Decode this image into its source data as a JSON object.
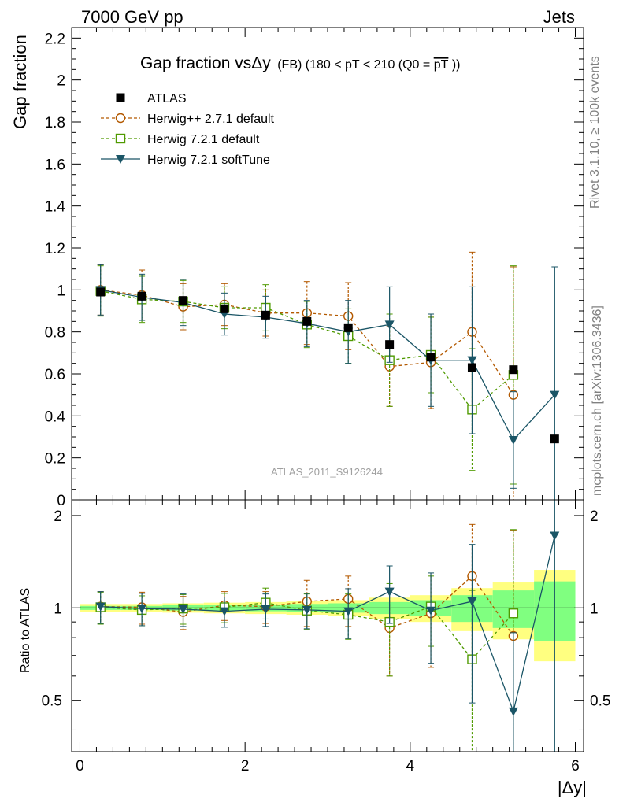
{
  "header": {
    "left": "7000 GeV pp",
    "right": "Jets"
  },
  "side_labels": {
    "rivet": "Rivet 3.1.10, ≥ 100k events",
    "mcplots": "mcplots.cern.ch [arXiv:1306.3436]"
  },
  "watermark": "ATLAS_2011_S9126244",
  "chart_data": {
    "type": "scatter",
    "title": "Gap fraction vsΔy (FB) (180 < pT < 210 (Q0 =pT))",
    "title_parts": {
      "main": "Gap fraction vsΔy",
      "sub": "(FB) (180 < pT < 210 (Q0 =",
      "overline": "pT",
      "close": "))"
    },
    "xlabel": "|Δy|",
    "ylabel": "Gap fraction",
    "ratio_ylabel": "Ratio to ATLAS",
    "xlim": [
      -0.1,
      6.1
    ],
    "ylim": [
      0,
      2.25
    ],
    "ratio_ylim": [
      0.34,
      2.25
    ],
    "x_ticks": [
      "0",
      "2",
      "4",
      "6"
    ],
    "y_ticks": [
      "0",
      "0.2",
      "0.4",
      "0.6",
      "0.8",
      "1",
      "1.2",
      "1.4",
      "1.6",
      "1.8",
      "2",
      "2.2"
    ],
    "ratio_ticks": [
      "0.5",
      "1",
      "2"
    ],
    "legend_position": "top-left",
    "x": [
      0.25,
      0.75,
      1.25,
      1.75,
      2.25,
      2.75,
      3.25,
      3.75,
      4.25,
      4.75,
      5.25,
      5.75
    ],
    "bins": [
      [
        0,
        0.5
      ],
      [
        0.5,
        1
      ],
      [
        1,
        1.5
      ],
      [
        1.5,
        2
      ],
      [
        2,
        2.5
      ],
      [
        2.5,
        3
      ],
      [
        3,
        3.5
      ],
      [
        3.5,
        4
      ],
      [
        4,
        4.5
      ],
      [
        4.5,
        5
      ],
      [
        5,
        5.5
      ],
      [
        5.5,
        6
      ]
    ],
    "series": [
      {
        "name": "ATLAS",
        "marker": "square-filled",
        "color": "#000000",
        "values": [
          0.99,
          0.97,
          0.95,
          0.91,
          0.88,
          0.85,
          0.82,
          0.74,
          0.68,
          0.63,
          0.62,
          0.29
        ],
        "band_yellow": [
          0.03,
          0.03,
          0.035,
          0.04,
          0.045,
          0.05,
          0.06,
          0.08,
          0.1,
          0.16,
          0.21,
          0.33
        ],
        "band_green": [
          0.015,
          0.015,
          0.02,
          0.02,
          0.025,
          0.03,
          0.035,
          0.045,
          0.06,
          0.1,
          0.14,
          0.22
        ]
      },
      {
        "name": "Herwig++ 2.7.1 default",
        "marker": "circle-open",
        "line": "dashed",
        "color": "#b35900",
        "values": [
          1.0,
          0.975,
          0.92,
          0.93,
          0.89,
          0.89,
          0.875,
          0.635,
          0.655,
          0.8,
          0.5,
          null
        ],
        "err": [
          0.12,
          0.12,
          0.11,
          0.1,
          0.11,
          0.15,
          0.16,
          0.19,
          0.22,
          0.38,
          0.61,
          null
        ],
        "ratio": [
          1.01,
          1.005,
          0.97,
          1.02,
          1.01,
          1.05,
          1.07,
          0.86,
          0.96,
          1.27,
          0.81,
          null
        ],
        "ratio_err": [
          0.12,
          0.12,
          0.12,
          0.11,
          0.12,
          0.18,
          0.2,
          0.26,
          0.32,
          0.6,
          0.98,
          null
        ]
      },
      {
        "name": "Herwig 7.2.1 default",
        "marker": "square-open",
        "line": "dashed",
        "color": "#4f9a00",
        "values": [
          0.995,
          0.955,
          0.945,
          0.915,
          0.915,
          0.835,
          0.78,
          0.665,
          0.69,
          0.43,
          0.595,
          null
        ],
        "err": [
          0.12,
          0.11,
          0.1,
          0.1,
          0.11,
          0.11,
          0.13,
          0.22,
          0.18,
          0.29,
          0.52,
          null
        ],
        "ratio": [
          1.005,
          0.985,
          0.995,
          1.005,
          1.04,
          0.98,
          0.95,
          0.9,
          1.01,
          0.68,
          0.96,
          null
        ],
        "ratio_err": [
          0.12,
          0.11,
          0.11,
          0.11,
          0.12,
          0.13,
          0.16,
          0.3,
          0.26,
          0.46,
          0.84,
          null
        ]
      },
      {
        "name": "Herwig 7.2.1 softTune",
        "marker": "triangle-down-filled",
        "line": "solid",
        "color": "#1a5566",
        "values": [
          1.0,
          0.965,
          0.94,
          0.885,
          0.87,
          0.84,
          0.8,
          0.835,
          0.665,
          0.665,
          0.285,
          0.5
        ],
        "err": [
          0.12,
          0.11,
          0.11,
          0.1,
          0.1,
          0.11,
          0.15,
          0.18,
          0.22,
          0.35,
          0.23,
          0.61
        ],
        "ratio": [
          1.01,
          0.995,
          0.99,
          0.975,
          0.99,
          0.985,
          0.975,
          1.13,
          0.98,
          1.05,
          0.46,
          1.72
        ],
        "ratio_err": [
          0.12,
          0.12,
          0.12,
          0.11,
          0.12,
          0.13,
          0.18,
          0.24,
          0.32,
          0.56,
          0.37,
          2.1
        ]
      }
    ]
  }
}
